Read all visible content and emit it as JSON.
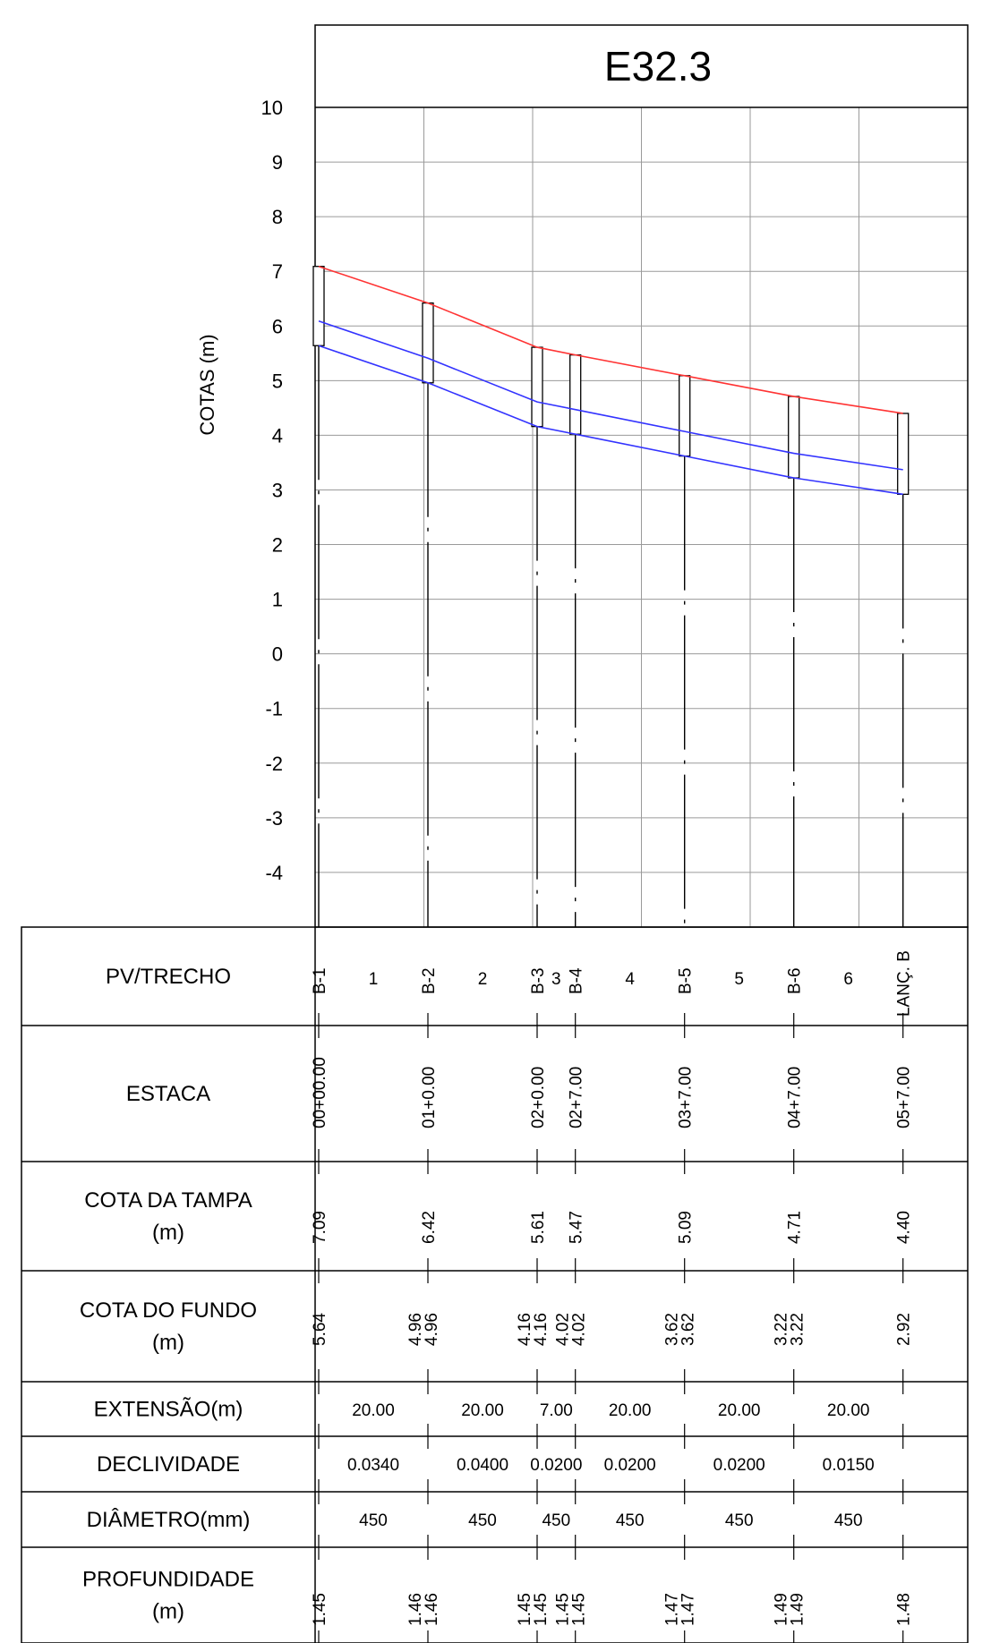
{
  "title": "E32.3",
  "chart_data": {
    "type": "line",
    "title": "E32.3",
    "ylabel": "COTAS (m)",
    "ylim": [
      -5,
      10
    ],
    "yticks": [
      "10",
      "9",
      "8",
      "7",
      "6",
      "5",
      "4",
      "3",
      "2",
      "1",
      "0",
      "-1",
      "-2",
      "-3",
      "-4"
    ],
    "grid": true,
    "x_unit": "m",
    "series": [
      {
        "role": "terreno",
        "color": "#ff3333",
        "stations_m": [
          0,
          20,
          40,
          47,
          67,
          87,
          107
        ],
        "values": [
          7.09,
          6.42,
          5.61,
          5.47,
          5.09,
          4.71,
          4.4
        ]
      },
      {
        "role": "geratriz-superior",
        "color": "#3333ff",
        "stations_m": [
          0,
          20,
          20,
          40,
          40,
          47,
          47,
          67,
          67,
          87,
          87,
          107
        ],
        "values": [
          6.09,
          5.41,
          5.41,
          4.61,
          4.61,
          4.47,
          4.47,
          4.07,
          4.07,
          3.67,
          3.67,
          3.37
        ]
      },
      {
        "role": "geratriz-inferior",
        "color": "#3333ff",
        "stations_m": [
          0,
          20,
          20,
          40,
          40,
          47,
          47,
          67,
          67,
          87,
          87,
          107
        ],
        "values": [
          5.64,
          4.96,
          4.96,
          4.16,
          4.16,
          4.02,
          4.02,
          3.62,
          3.62,
          3.22,
          3.22,
          2.92
        ]
      }
    ],
    "manholes": [
      {
        "id": "B-1",
        "station_m": 0,
        "top": 7.09,
        "bottom": 5.64
      },
      {
        "id": "B-2",
        "station_m": 20,
        "top": 6.42,
        "bottom": 4.96
      },
      {
        "id": "B-3",
        "station_m": 40,
        "top": 5.61,
        "bottom": 4.16
      },
      {
        "id": "B-4",
        "station_m": 47,
        "top": 5.47,
        "bottom": 4.02
      },
      {
        "id": "B-5",
        "station_m": 67,
        "top": 5.09,
        "bottom": 3.62
      },
      {
        "id": "B-6",
        "station_m": 87,
        "top": 4.71,
        "bottom": 3.22
      },
      {
        "id": "LANÇ. B",
        "station_m": 107,
        "top": 4.4,
        "bottom": 2.92
      }
    ]
  },
  "table": {
    "row_labels": [
      [
        "PV/TRECHO"
      ],
      [
        "ESTACA"
      ],
      [
        "COTA DA TAMPA",
        "(m)"
      ],
      [
        "COTA DO FUNDO",
        "(m)"
      ],
      [
        "EXTENSÃO(m)"
      ],
      [
        "DECLIVIDADE"
      ],
      [
        "DIÂMETRO(mm)"
      ],
      [
        "PROFUNDIDADE",
        "(m)"
      ]
    ],
    "nodes": [
      {
        "pv": "B-1",
        "estaca": "00+00.00",
        "cota_tampa": "7.09",
        "cota_fundo": [
          "5.64"
        ],
        "profundidade": [
          "1.45"
        ]
      },
      {
        "pv": "B-2",
        "estaca": "01+0.00",
        "cota_tampa": "6.42",
        "cota_fundo": [
          "4.96",
          "4.96"
        ],
        "profundidade": [
          "1.46",
          "1.46"
        ]
      },
      {
        "pv": "B-3",
        "estaca": "02+0.00",
        "cota_tampa": "5.61",
        "cota_fundo": [
          "4.16",
          "4.16"
        ],
        "profundidade": [
          "1.45",
          "1.45"
        ]
      },
      {
        "pv": "B-4",
        "estaca": "02+7.00",
        "cota_tampa": "5.47",
        "cota_fundo": [
          "4.02",
          "4.02"
        ],
        "profundidade": [
          "1.45",
          "1.45"
        ]
      },
      {
        "pv": "B-5",
        "estaca": "03+7.00",
        "cota_tampa": "5.09",
        "cota_fundo": [
          "3.62",
          "3.62"
        ],
        "profundidade": [
          "1.47",
          "1.47"
        ]
      },
      {
        "pv": "B-6",
        "estaca": "04+7.00",
        "cota_tampa": "4.71",
        "cota_fundo": [
          "3.22",
          "3.22"
        ],
        "profundidade": [
          "1.49",
          "1.49"
        ]
      },
      {
        "pv": "LANÇ. B",
        "estaca": "05+7.00",
        "cota_tampa": "4.40",
        "cota_fundo": [
          "2.92"
        ],
        "profundidade": [
          "1.48"
        ]
      }
    ],
    "segments": [
      {
        "trecho": "1",
        "extensao": "20.00",
        "declividade": "0.0340",
        "diametro": "450"
      },
      {
        "trecho": "2",
        "extensao": "20.00",
        "declividade": "0.0400",
        "diametro": "450"
      },
      {
        "trecho": "3",
        "extensao": "7.00",
        "declividade": "0.0200",
        "diametro": "450"
      },
      {
        "trecho": "4",
        "extensao": "20.00",
        "declividade": "0.0200",
        "diametro": "450"
      },
      {
        "trecho": "5",
        "extensao": "20.00",
        "declividade": "0.0200",
        "diametro": "450"
      },
      {
        "trecho": "6",
        "extensao": "20.00",
        "declividade": "0.0150",
        "diametro": "450"
      }
    ]
  }
}
